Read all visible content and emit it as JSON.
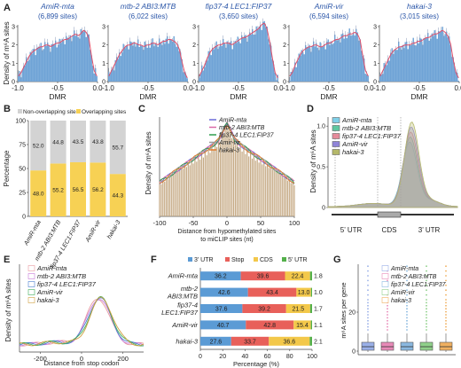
{
  "panels": {
    "A": {
      "letter": "A",
      "ylabel": "Density of m⁶A sites",
      "xlabel": "DMR",
      "ticks": [
        "-1.0",
        "-0.5",
        "0.0"
      ],
      "ymax": 3,
      "ytick_labels": [
        "0",
        "1",
        "2",
        "3"
      ],
      "bar_color": "#6fa3d6",
      "line_color": "#e0506a",
      "subplots": [
        {
          "title": "AmiR-mta",
          "count": "(6,899 sites)",
          "profile": [
            0.3,
            0.5,
            0.8,
            1.1,
            1.4,
            1.6,
            1.7,
            1.8,
            1.9,
            1.9,
            2.0,
            2.0,
            1.9,
            2.0,
            2.1,
            2.1,
            2.2,
            2.3,
            2.3,
            2.4,
            2.5,
            2.6,
            2.5,
            2.6,
            2.8,
            2.7,
            2.4,
            1.4,
            0.6,
            0.3
          ]
        },
        {
          "title": "mtb-2 ABI3:MTB",
          "count": "(6,022 sites)",
          "profile": [
            0.3,
            0.6,
            0.9,
            1.2,
            1.5,
            1.7,
            1.9,
            2.0,
            2.0,
            2.1,
            2.1,
            2.0,
            2.0,
            1.9,
            2.0,
            2.0,
            2.1,
            2.1,
            2.0,
            2.1,
            2.2,
            2.2,
            2.3,
            2.3,
            2.2,
            2.1,
            1.8,
            1.1,
            0.5,
            0.2
          ]
        },
        {
          "title": "fip37-4 LEC1:FIP37",
          "count": "(3,650 sites)",
          "profile": [
            0.3,
            0.6,
            0.9,
            1.3,
            1.6,
            1.8,
            1.9,
            2.0,
            2.0,
            2.1,
            2.1,
            2.1,
            2.0,
            2.1,
            2.2,
            2.3,
            2.4,
            2.4,
            2.5,
            2.6,
            2.7,
            2.8,
            2.9,
            3.1,
            3.2,
            2.9,
            2.2,
            1.3,
            0.5,
            0.2
          ]
        },
        {
          "title": "AmiR-vir",
          "count": "(6,594 sites)",
          "profile": [
            0.3,
            0.5,
            0.9,
            1.2,
            1.5,
            1.7,
            1.8,
            1.9,
            1.9,
            2.0,
            2.0,
            1.9,
            1.9,
            2.0,
            2.1,
            2.1,
            2.2,
            2.3,
            2.3,
            2.4,
            2.5,
            2.5,
            2.6,
            2.6,
            2.7,
            2.6,
            2.3,
            1.4,
            0.6,
            0.3
          ]
        },
        {
          "title": "hakai-3",
          "count": "(3,015 sites)",
          "profile": [
            0.3,
            0.6,
            0.9,
            1.2,
            1.5,
            1.7,
            1.8,
            1.9,
            1.9,
            2.0,
            2.0,
            2.0,
            2.1,
            2.1,
            2.2,
            2.2,
            2.3,
            2.4,
            2.4,
            2.5,
            2.6,
            2.6,
            2.7,
            2.8,
            2.7,
            2.5,
            2.1,
            1.2,
            0.5,
            0.2
          ]
        }
      ]
    },
    "B": {
      "letter": "B",
      "ylabel": "Percentage",
      "legend": [
        "Non-overlapping sites",
        "Overlapping sites"
      ],
      "colors": {
        "non": "#d3d3d3",
        "over": "#f7d154"
      },
      "ytick_labels": [
        "0",
        "25",
        "50",
        "75",
        "100"
      ],
      "categories": [
        "AmiR-mta",
        "mtb-2 ABI3:MTB",
        "fip37-4 LEC1:FIP37",
        "AmiR-vir",
        "hakai-3"
      ],
      "overlapping": [
        48.0,
        55.2,
        56.5,
        56.2,
        44.3
      ],
      "non_overlapping": [
        52.0,
        44.8,
        43.5,
        43.8,
        55.7
      ],
      "over_labels": [
        "48.0",
        "55.2",
        "56.5",
        "56.2",
        "44.3"
      ],
      "non_labels": [
        "52.0",
        "44.8",
        "43.5",
        "43.8",
        "55.7"
      ]
    },
    "C": {
      "letter": "C",
      "ylabel": "Density of m⁶A sites",
      "xlabel1": "Distance from hypomethylated sites",
      "xlabel2": "to miCLIP sites (nt)",
      "xtick_labels": [
        "-100",
        "-50",
        "0",
        "50",
        "100"
      ],
      "legend": [
        {
          "label": "AmiR-mta",
          "color": "#6a6ad8"
        },
        {
          "label": "mtb-2 ABI3:MTB",
          "color": "#d86aa8"
        },
        {
          "label": "fip37-4 LEC1:FIP37",
          "color": "#2e9e4e"
        },
        {
          "label": "Amir-vir",
          "color": "#9a9a9a"
        },
        {
          "label": "hakai-3",
          "color": "#e07a2a"
        }
      ],
      "bar_color": "#c4a882"
    },
    "D": {
      "letter": "D",
      "ylabel": "Density of m⁶A sites",
      "ytick_labels": [
        "0",
        "0.5",
        "1.0"
      ],
      "region_labels": [
        "5’ UTR",
        "CDS",
        "3’ UTR"
      ],
      "legend": [
        {
          "label": "AmiR-mta",
          "color": "#7fd0e8"
        },
        {
          "label": "mtb-2 ABI3:MTB",
          "color": "#5fc7a0"
        },
        {
          "label": "fip37-4 LEC1:FIP37",
          "color": "#e58a9a"
        },
        {
          "label": "AmiR-vir",
          "color": "#8f84d8"
        },
        {
          "label": "hakai-3",
          "color": "#b5b86a"
        }
      ]
    },
    "E": {
      "letter": "E",
      "ylabel": "Density of m⁶A sites",
      "xlabel": "Distance from stop codon",
      "xtick_labels": [
        "-200",
        "0",
        "200"
      ],
      "legend": [
        {
          "label": "AmiR-mta",
          "color": "#e89aa0"
        },
        {
          "label": "mtb-2 ABI3:MTB",
          "color": "#c77ad8"
        },
        {
          "label": "fip37-4 LEC1:FIP37",
          "color": "#4a7fd0"
        },
        {
          "label": "AmiR-vir",
          "color": "#3fae5a"
        },
        {
          "label": "hakai-3",
          "color": "#d0a040"
        }
      ]
    },
    "F": {
      "letter": "F",
      "xlabel": "Percentage (%)",
      "xtick_labels": [
        "0",
        "20",
        "40",
        "60",
        "80",
        "100"
      ],
      "legend": [
        {
          "label": "3’ UTR",
          "color": "#5b9bd5"
        },
        {
          "label": "Stop",
          "color": "#e8605a"
        },
        {
          "label": "CDS",
          "color": "#f3c84a"
        },
        {
          "label": "5’ UTR",
          "color": "#54b04a"
        }
      ],
      "rows": [
        {
          "label": [
            "AmiR-mta"
          ],
          "values": [
            36.2,
            39.6,
            22.4,
            1.8
          ],
          "texts": [
            "36.2",
            "39.6",
            "22.4",
            "1.8"
          ]
        },
        {
          "label": [
            "mtb-2",
            "ABI3:MTB"
          ],
          "values": [
            42.6,
            43.4,
            13.0,
            1.0
          ],
          "texts": [
            "42.6",
            "43.4",
            "13.0",
            "1.0"
          ]
        },
        {
          "label": [
            "fip37-4",
            "LEC1:FIP37"
          ],
          "values": [
            37.6,
            39.2,
            21.5,
            1.7
          ],
          "texts": [
            "37.6",
            "39.2",
            "21.5",
            "1.7"
          ]
        },
        {
          "label": [
            "AmiR-vir"
          ],
          "values": [
            40.7,
            42.8,
            15.4,
            1.1
          ],
          "texts": [
            "40.7",
            "42.8",
            "15.4",
            "1.1"
          ]
        },
        {
          "label": [
            "hakai-3"
          ],
          "values": [
            27.6,
            33.7,
            36.6,
            2.1
          ],
          "texts": [
            "27.6",
            "33.7",
            "36.6",
            "2.1"
          ]
        }
      ]
    },
    "G": {
      "letter": "G",
      "ylabel": "m⁶A sites per gene",
      "ytick_labels": [
        "0",
        "20"
      ],
      "legend": [
        {
          "label": "AmiR-mta",
          "color": "#9ab0e8"
        },
        {
          "label": "mtb-2 ABI3:MTB",
          "color": "#e88ab8"
        },
        {
          "label": "fip37-4 LEC1:FIP37",
          "color": "#8ab8e0"
        },
        {
          "label": "AmiR-vir",
          "color": "#8fd08a"
        },
        {
          "label": "hakai-3",
          "color": "#f0b060"
        }
      ]
    }
  },
  "chart_data": [
    {
      "type": "bar",
      "panel": "A",
      "xlabel": "DMR",
      "ylabel": "Density of m⁶A sites",
      "x_range": [
        -1.0,
        0.0
      ],
      "ylim": [
        0,
        3
      ],
      "series": [
        {
          "name": "AmiR-mta (6,899 sites)"
        },
        {
          "name": "mtb-2 ABI3:MTB (6,022 sites)"
        },
        {
          "name": "fip37-4 LEC1:FIP37 (3,650 sites)"
        },
        {
          "name": "AmiR-vir (6,594 sites)"
        },
        {
          "name": "hakai-3 (3,015 sites)"
        }
      ]
    },
    {
      "type": "bar",
      "panel": "B",
      "categories": [
        "AmiR-mta",
        "mtb-2 ABI3:MTB",
        "fip37-4 LEC1:FIP37",
        "AmiR-vir",
        "hakai-3"
      ],
      "series": [
        {
          "name": "Overlapping sites",
          "values": [
            48.0,
            55.2,
            56.5,
            56.2,
            44.3
          ]
        },
        {
          "name": "Non-overlapping sites",
          "values": [
            52.0,
            44.8,
            43.5,
            43.8,
            55.7
          ]
        }
      ],
      "ylabel": "Percentage",
      "ylim": [
        0,
        100
      ],
      "stacked": true
    },
    {
      "type": "bar",
      "panel": "F",
      "orientation": "horizontal",
      "stacked": true,
      "categories": [
        "AmiR-mta",
        "mtb-2 ABI3:MTB",
        "fip37-4 LEC1:FIP37",
        "AmiR-vir",
        "hakai-3"
      ],
      "series": [
        {
          "name": "3’ UTR",
          "values": [
            36.2,
            42.6,
            37.6,
            40.7,
            27.6
          ]
        },
        {
          "name": "Stop",
          "values": [
            39.6,
            43.4,
            39.2,
            42.8,
            33.7
          ]
        },
        {
          "name": "CDS",
          "values": [
            22.4,
            13.0,
            21.5,
            15.4,
            36.6
          ]
        },
        {
          "name": "5’ UTR",
          "values": [
            1.8,
            1.0,
            1.7,
            1.1,
            2.1
          ]
        }
      ],
      "xlabel": "Percentage (%)",
      "xlim": [
        0,
        100
      ]
    }
  ]
}
